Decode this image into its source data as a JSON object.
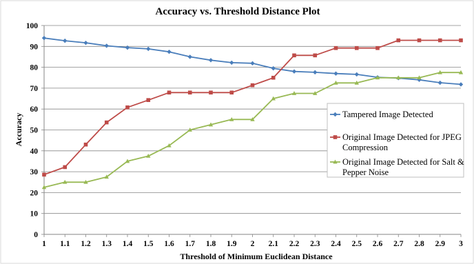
{
  "chart_data": {
    "type": "line",
    "title": "Accuracy vs. Threshold Distance Plot",
    "xlabel": "Threshold of Minimum Euclidean Distance",
    "ylabel": "Accuracy",
    "x": [
      1,
      1.1,
      1.2,
      1.3,
      1.4,
      1.5,
      1.6,
      1.7,
      1.8,
      1.9,
      2,
      2.1,
      2.2,
      2.3,
      2.4,
      2.5,
      2.6,
      2.7,
      2.8,
      2.9,
      3
    ],
    "x_tick_labels": [
      "1",
      "1.1",
      "1.2",
      "1.3",
      "1.4",
      "1.5",
      "1.6",
      "1.7",
      "1.8",
      "1.9",
      "2",
      "2.1",
      "2.2",
      "2.3",
      "2.4",
      "2.5",
      "2.6",
      "2.7",
      "2.8",
      "2.9",
      "3"
    ],
    "ylim": [
      0,
      100
    ],
    "y_ticks": [
      0,
      10,
      20,
      30,
      40,
      50,
      60,
      70,
      80,
      90,
      100
    ],
    "grid": "horizontal",
    "legend_position": "right",
    "series": [
      {
        "name_lines": [
          "Tampered Image Detected"
        ],
        "color": "#4a7ebb",
        "marker": "diamond",
        "values": [
          94,
          92.7,
          91.7,
          90.3,
          89.4,
          88.8,
          87.4,
          85,
          83.4,
          82.2,
          81.9,
          79.5,
          78,
          77.6,
          77,
          76.6,
          75.2,
          74.8,
          74,
          72.6,
          71.8
        ]
      },
      {
        "name_lines": [
          "Original Image Detected for JPEG",
          "Compression"
        ],
        "color": "#be4b48",
        "marker": "square",
        "values": [
          28.6,
          32.2,
          43,
          53.6,
          60.8,
          64.3,
          67.9,
          67.9,
          67.9,
          67.9,
          71.4,
          75,
          85.7,
          85.7,
          89.2,
          89.2,
          89.2,
          92.9,
          92.9,
          92.9,
          92.9
        ]
      },
      {
        "name_lines": [
          "Original Image Detected for Salt &",
          "Pepper Noise"
        ],
        "color": "#98b954",
        "marker": "triangle",
        "values": [
          22.5,
          25,
          25,
          27.5,
          35,
          37.5,
          42.5,
          50,
          52.5,
          55,
          55,
          65,
          67.5,
          67.5,
          72.5,
          72.5,
          75,
          75,
          75,
          77.5,
          77.5
        ]
      }
    ]
  }
}
